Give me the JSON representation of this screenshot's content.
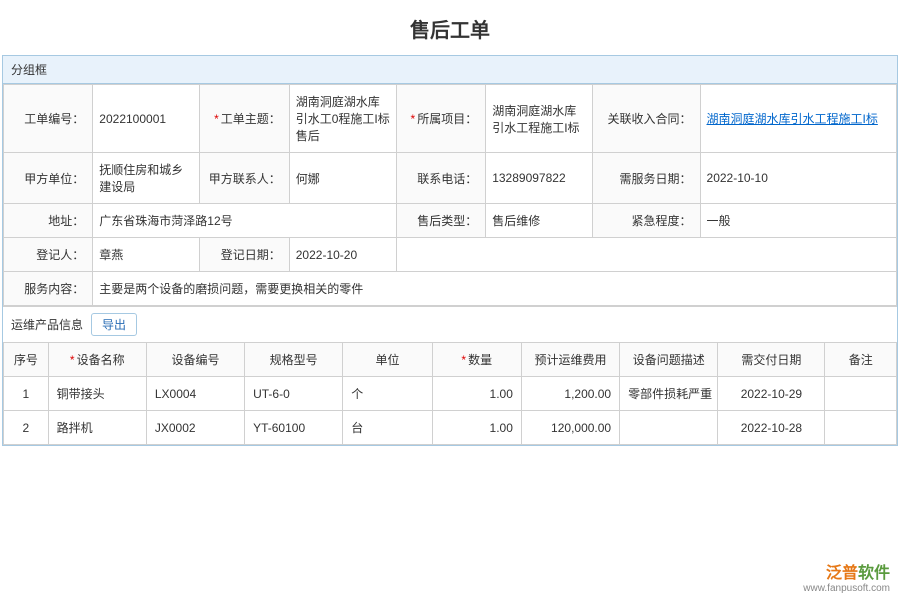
{
  "page": {
    "title": "售后工单"
  },
  "group": {
    "header": "分组框"
  },
  "form": {
    "order_no": {
      "label": "工单编号：",
      "value": "2022100001"
    },
    "subject": {
      "label": "工单主题：",
      "value": "湖南洞庭湖水库引水工0程施工I标售后",
      "required": true
    },
    "project": {
      "label": "所属项目：",
      "value": "湖南洞庭湖水库引水工程施工I标",
      "required": true
    },
    "contract": {
      "label": "关联收入合同：",
      "value": "湖南洞庭湖水库引水工程施工I标"
    },
    "partyA": {
      "label": "甲方单位：",
      "value": "抚顺住房和城乡建设局"
    },
    "partyA_contact": {
      "label": "甲方联系人：",
      "value": "何娜"
    },
    "phone": {
      "label": "联系电话：",
      "value": "13289097822"
    },
    "service_date": {
      "label": "需服务日期：",
      "value": "2022-10-10"
    },
    "address": {
      "label": "地址：",
      "value": "广东省珠海市菏泽路12号"
    },
    "type": {
      "label": "售后类型：",
      "value": "售后维修"
    },
    "urgency": {
      "label": "紧急程度：",
      "value": "一般"
    },
    "registrar": {
      "label": "登记人：",
      "value": "章燕"
    },
    "reg_date": {
      "label": "登记日期：",
      "value": "2022-10-20"
    },
    "content": {
      "label": "服务内容：",
      "value": "主要是两个设备的磨损问题，需要更换相关的零件"
    }
  },
  "section": {
    "title": "运维产品信息",
    "export": "导出"
  },
  "table": {
    "headers": {
      "seq": "序号",
      "name": "设备名称",
      "code": "设备编号",
      "spec": "规格型号",
      "unit": "单位",
      "qty": "数量",
      "cost": "预计运维费用",
      "desc": "设备问题描述",
      "due": "需交付日期",
      "remark": "备注"
    },
    "rows": [
      {
        "seq": "1",
        "name": "铜带接头",
        "code": "LX0004",
        "spec": "UT-6-0",
        "unit": "个",
        "qty": "1.00",
        "cost": "1,200.00",
        "desc": "零部件损耗严重",
        "due": "2022-10-29",
        "remark": ""
      },
      {
        "seq": "2",
        "name": "路拌机",
        "code": "JX0002",
        "spec": "YT-60100",
        "unit": "台",
        "qty": "1.00",
        "cost": "120,000.00",
        "desc": "",
        "due": "2022-10-28",
        "remark": ""
      }
    ]
  },
  "footer": {
    "brand1": "泛普",
    "brand2": "软件",
    "url": "www.fanpusoft.com"
  }
}
